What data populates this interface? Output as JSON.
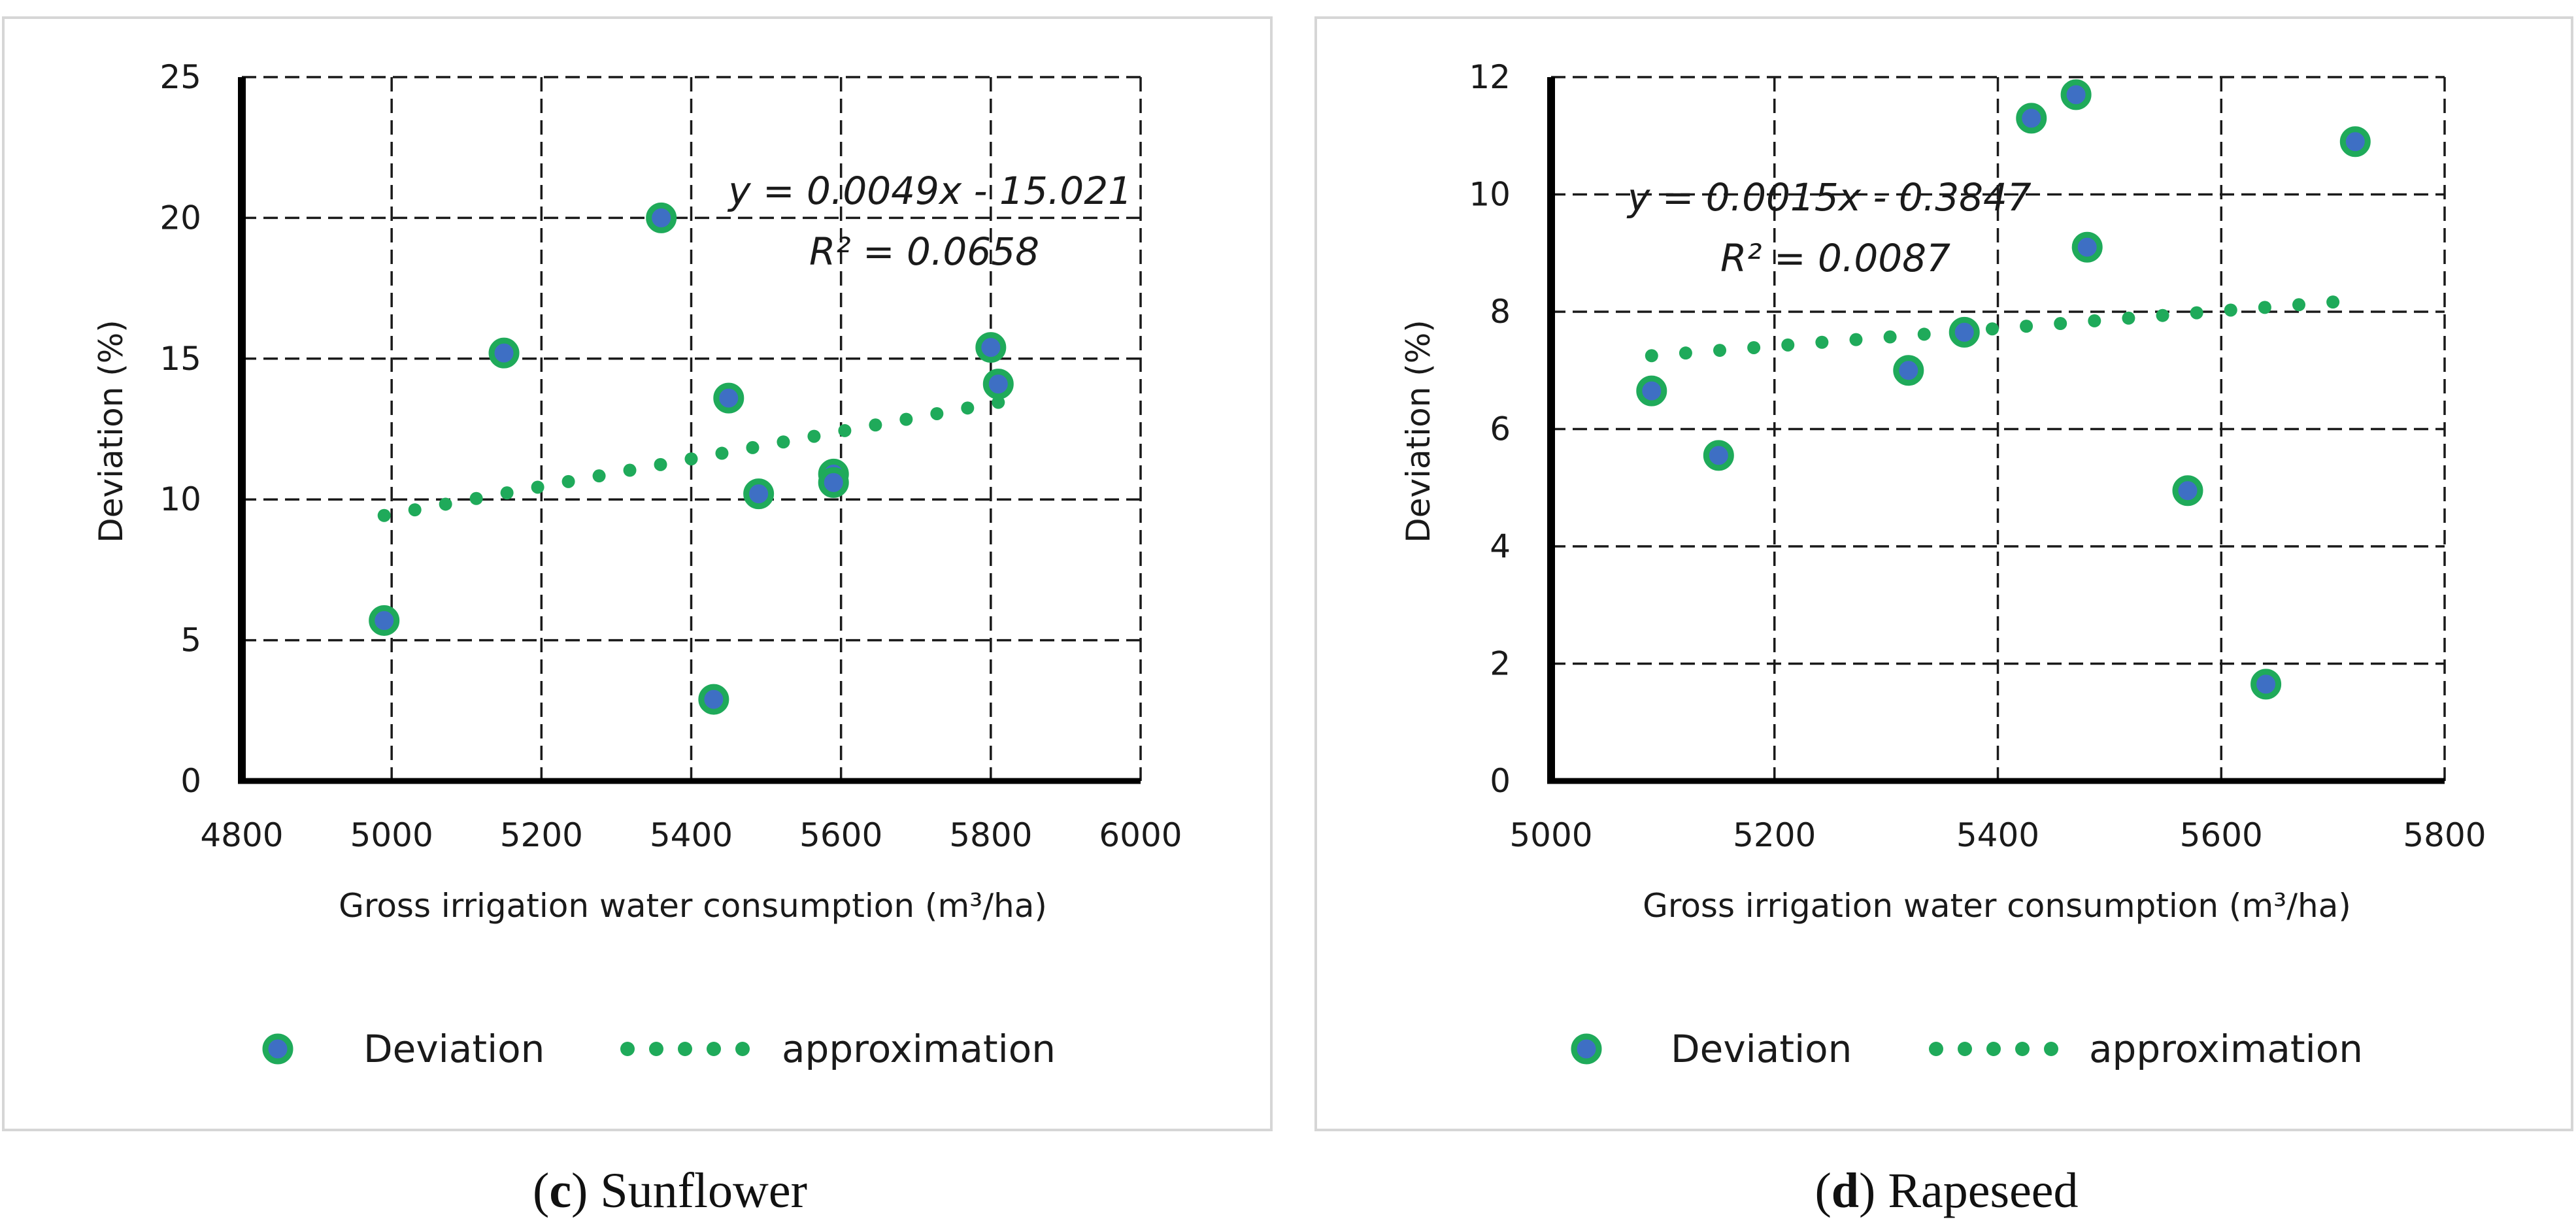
{
  "chart_data": [
    {
      "type": "scatter",
      "caption_letter": "c",
      "caption_name": "Sunflower",
      "xlabel": "Gross irrigation water consumption (m³/ha)",
      "ylabel": "Deviation (%)",
      "xlim": [
        4800,
        6000
      ],
      "ylim": [
        0,
        25
      ],
      "xticks": [
        4800,
        5000,
        5200,
        5400,
        5600,
        5800,
        6000
      ],
      "yticks": [
        0,
        5,
        10,
        15,
        20,
        25
      ],
      "grid": true,
      "legend_position": "bottom",
      "series": [
        {
          "name": "Deviation",
          "kind": "markers",
          "color": "#3e6fc4",
          "edge_color": "#1faa5a",
          "points": [
            [
              4990,
              5.7
            ],
            [
              5150,
              15.2
            ],
            [
              5360,
              20.0
            ],
            [
              5430,
              2.9
            ],
            [
              5450,
              13.6
            ],
            [
              5490,
              10.2
            ],
            [
              5590,
              10.9
            ],
            [
              5590,
              10.6
            ],
            [
              5800,
              15.4
            ],
            [
              5810,
              14.1
            ]
          ]
        },
        {
          "name": "approximation",
          "kind": "trendline",
          "color": "#1faa5a",
          "slope": 0.0049,
          "intercept": -15.021,
          "x_range": [
            4990,
            5810
          ]
        }
      ],
      "equation": "y = 0.0049x - 15.021",
      "r_squared": "R² = 0.0658"
    },
    {
      "type": "scatter",
      "caption_letter": "d",
      "caption_name": "Rapeseed",
      "xlabel": "Gross irrigation water consumption (m³/ha)",
      "ylabel": "Deviation (%)",
      "xlim": [
        5000,
        5800
      ],
      "ylim": [
        0,
        12
      ],
      "xticks": [
        5000,
        5200,
        5400,
        5600,
        5800
      ],
      "yticks": [
        0,
        2,
        4,
        6,
        8,
        10,
        12
      ],
      "grid": true,
      "legend_position": "bottom",
      "series": [
        {
          "name": "Deviation",
          "kind": "markers",
          "color": "#3e6fc4",
          "edge_color": "#1faa5a",
          "points": [
            [
              5090,
              6.65
            ],
            [
              5150,
              5.55
            ],
            [
              5320,
              7.0
            ],
            [
              5370,
              7.65
            ],
            [
              5430,
              11.3
            ],
            [
              5470,
              11.7
            ],
            [
              5480,
              9.1
            ],
            [
              5570,
              4.95
            ],
            [
              5640,
              1.65
            ],
            [
              5720,
              10.9
            ]
          ]
        },
        {
          "name": "approximation",
          "kind": "trendline",
          "color": "#1faa5a",
          "slope": 0.0015,
          "intercept": -0.3847,
          "x_range": [
            5090,
            5700
          ]
        }
      ],
      "equation": "y = 0.0015x - 0.3847",
      "r_squared": "R² = 0.0087"
    }
  ]
}
